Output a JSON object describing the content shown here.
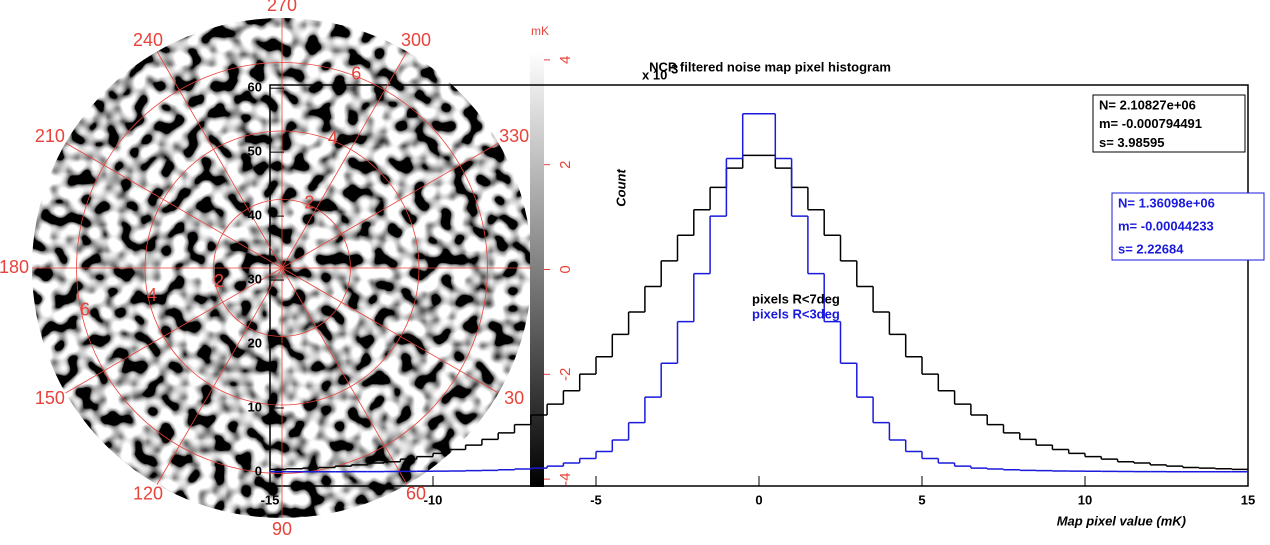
{
  "chart_data": [
    {
      "type": "polar_map",
      "angle_labels": [
        {
          "value": 270,
          "label": "270"
        },
        {
          "value": 300,
          "label": "300"
        },
        {
          "value": 330,
          "label": "330"
        },
        {
          "value": 30,
          "label": "30"
        },
        {
          "value": 60,
          "label": "60"
        },
        {
          "value": 90,
          "label": "90"
        },
        {
          "value": 120,
          "label": "120"
        },
        {
          "value": 150,
          "label": "150"
        },
        {
          "value": 180,
          "label": "180"
        },
        {
          "value": 210,
          "label": "210"
        },
        {
          "value": 240,
          "label": "240"
        }
      ],
      "rlim": [
        0,
        7.3
      ],
      "rticks": [
        2,
        4,
        6
      ],
      "colorbar_label": "mK",
      "colorbar_lim": [
        -4.15,
        4.15
      ],
      "colorbar_ticks": [
        -4,
        -2,
        0,
        2,
        4
      ],
      "grid_color": "#e8433a"
    },
    {
      "type": "histogram",
      "title": "NCP filtered noise map pixel histogram",
      "xlabel": "Map pixel value (mK)",
      "ylabel": "Count",
      "y_scale_label": "x 10",
      "y_scale_exponent": "3",
      "bins": [
        -15,
        -14.5,
        -14,
        -13.5,
        -13,
        -12.5,
        -12,
        -11.5,
        -11,
        -10.5,
        -10,
        -9.5,
        -9,
        -8.5,
        -8,
        -7.5,
        -7,
        -6.5,
        -6,
        -5.5,
        -5,
        -4.5,
        -4,
        -3.5,
        -3,
        -2.5,
        -2,
        -1.5,
        -1,
        -0.5,
        0,
        0.5,
        1,
        1.5,
        2,
        2.5,
        3,
        3.5,
        4,
        4.5,
        5,
        5.5,
        6,
        6.5,
        7,
        7.5,
        8,
        8.5,
        9,
        9.5,
        10,
        10.5,
        11,
        11.5,
        12,
        12.5,
        13,
        13.5,
        14,
        14.5,
        15
      ],
      "series": [
        {
          "name": "pixels R<7deg",
          "color": "#000000",
          "stats": [
            "N= 2.10827e+06",
            "m= -0.000794491",
            "s= 3.98595"
          ],
          "values": [
            0.4,
            0.5,
            0.6,
            0.7,
            0.9,
            1.1,
            1.4,
            1.6,
            2,
            2.4,
            2.9,
            3.5,
            4.2,
            5.1,
            6.1,
            7.4,
            8.9,
            10.6,
            12.7,
            15.3,
            18,
            21.5,
            25,
            29,
            33,
            37,
            41,
            44.5,
            47.5,
            49.5,
            49.5,
            47.5,
            44.5,
            41,
            37,
            33,
            29,
            25,
            21.5,
            18,
            15.3,
            12.7,
            10.6,
            8.9,
            7.4,
            6.1,
            5.1,
            4.2,
            3.5,
            2.9,
            2.4,
            2,
            1.6,
            1.4,
            1.1,
            0.9,
            0.7,
            0.6,
            0.5,
            0.4
          ]
        },
        {
          "name": "pixels R<3deg",
          "color": "#1a1adc",
          "stats": [
            "N= 1.36098e+06",
            "m= -0.00044233",
            "s= 2.22684"
          ],
          "values": [
            0.02,
            0.02,
            0.02,
            0.03,
            0.03,
            0.04,
            0.05,
            0.06,
            0.08,
            0.1,
            0.12,
            0.15,
            0.2,
            0.25,
            0.35,
            0.45,
            0.6,
            0.9,
            1.4,
            2.1,
            3.2,
            5,
            7.7,
            11.7,
            17,
            23.5,
            31,
            40,
            49,
            56,
            56,
            49,
            40,
            31,
            23.5,
            17,
            11.7,
            7.7,
            5,
            3.2,
            2.1,
            1.4,
            0.9,
            0.6,
            0.45,
            0.35,
            0.25,
            0.2,
            0.15,
            0.12,
            0.1,
            0.08,
            0.06,
            0.05,
            0.04,
            0.03,
            0.03,
            0.02,
            0.02,
            0.02
          ]
        }
      ],
      "xlim": [
        -15,
        15
      ],
      "xticks": [
        -15,
        -10,
        -5,
        0,
        5,
        10,
        15
      ],
      "ylim": [
        -2.2,
        60.5
      ],
      "yticks": [
        0,
        10,
        20,
        30,
        40,
        50,
        60
      ]
    }
  ]
}
